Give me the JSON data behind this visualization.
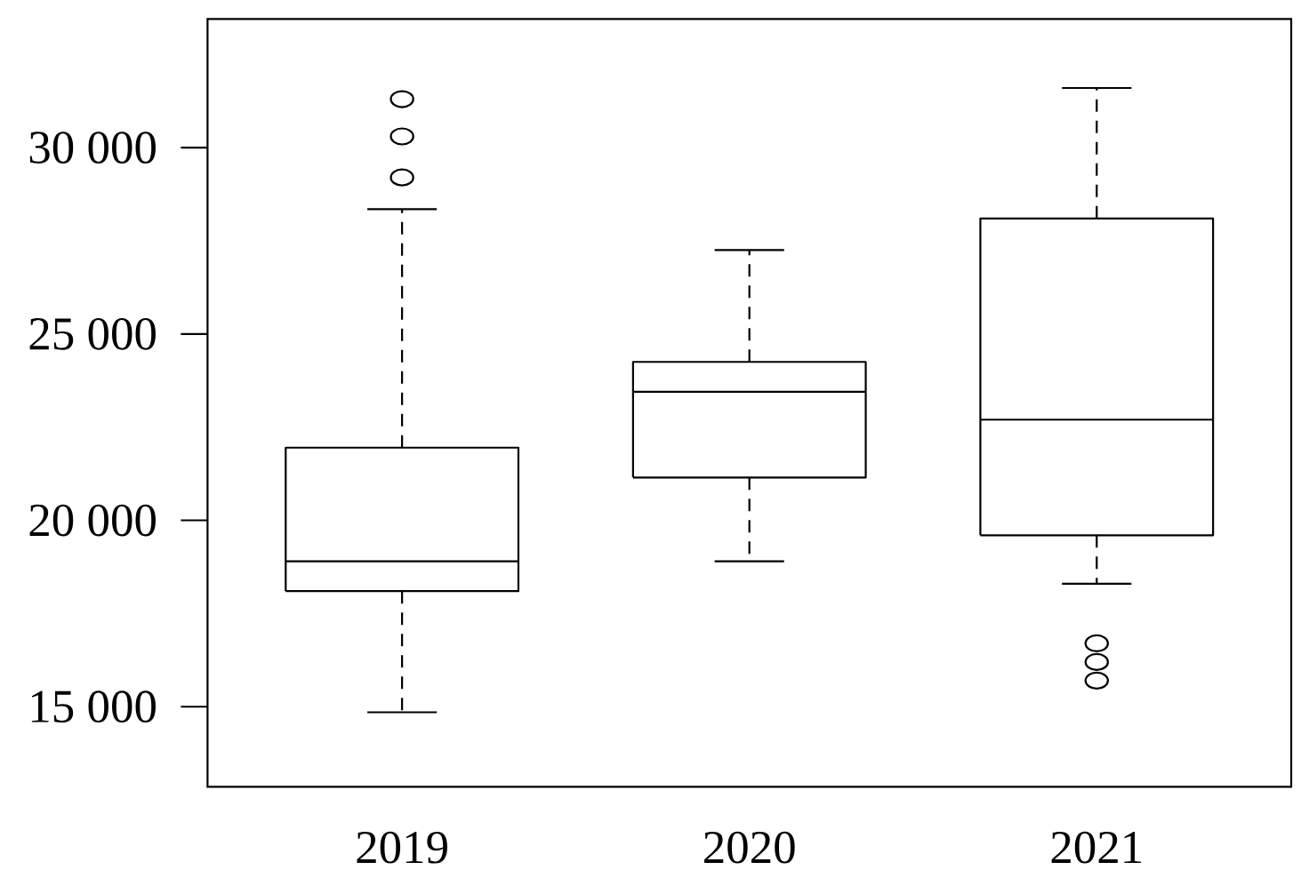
{
  "chart_data": {
    "type": "box",
    "categories": [
      "2019",
      "2020",
      "2021"
    ],
    "boxes": [
      {
        "low": 14850,
        "q1": 18100,
        "median": 18900,
        "q3": 21950,
        "high": 28350,
        "outliers": [
          29200,
          30300,
          31300
        ]
      },
      {
        "low": 18900,
        "q1": 21150,
        "median": 23450,
        "q3": 24250,
        "high": 27250
      },
      {
        "low": 18300,
        "q1": 19600,
        "median": 22700,
        "q3": 28100,
        "high": 31600,
        "outliers": [
          15700,
          16200,
          16700
        ]
      }
    ],
    "color": "#000000",
    "line_style": "dashed",
    "marker": "circle",
    "ylim": [
      12850,
      33450
    ],
    "yticks": [
      {
        "value": 15000,
        "label": "15 000"
      },
      {
        "value": 20000,
        "label": "20 000"
      },
      {
        "value": 25000,
        "label": "25 000"
      },
      {
        "value": 30000,
        "label": "30 000"
      }
    ]
  }
}
